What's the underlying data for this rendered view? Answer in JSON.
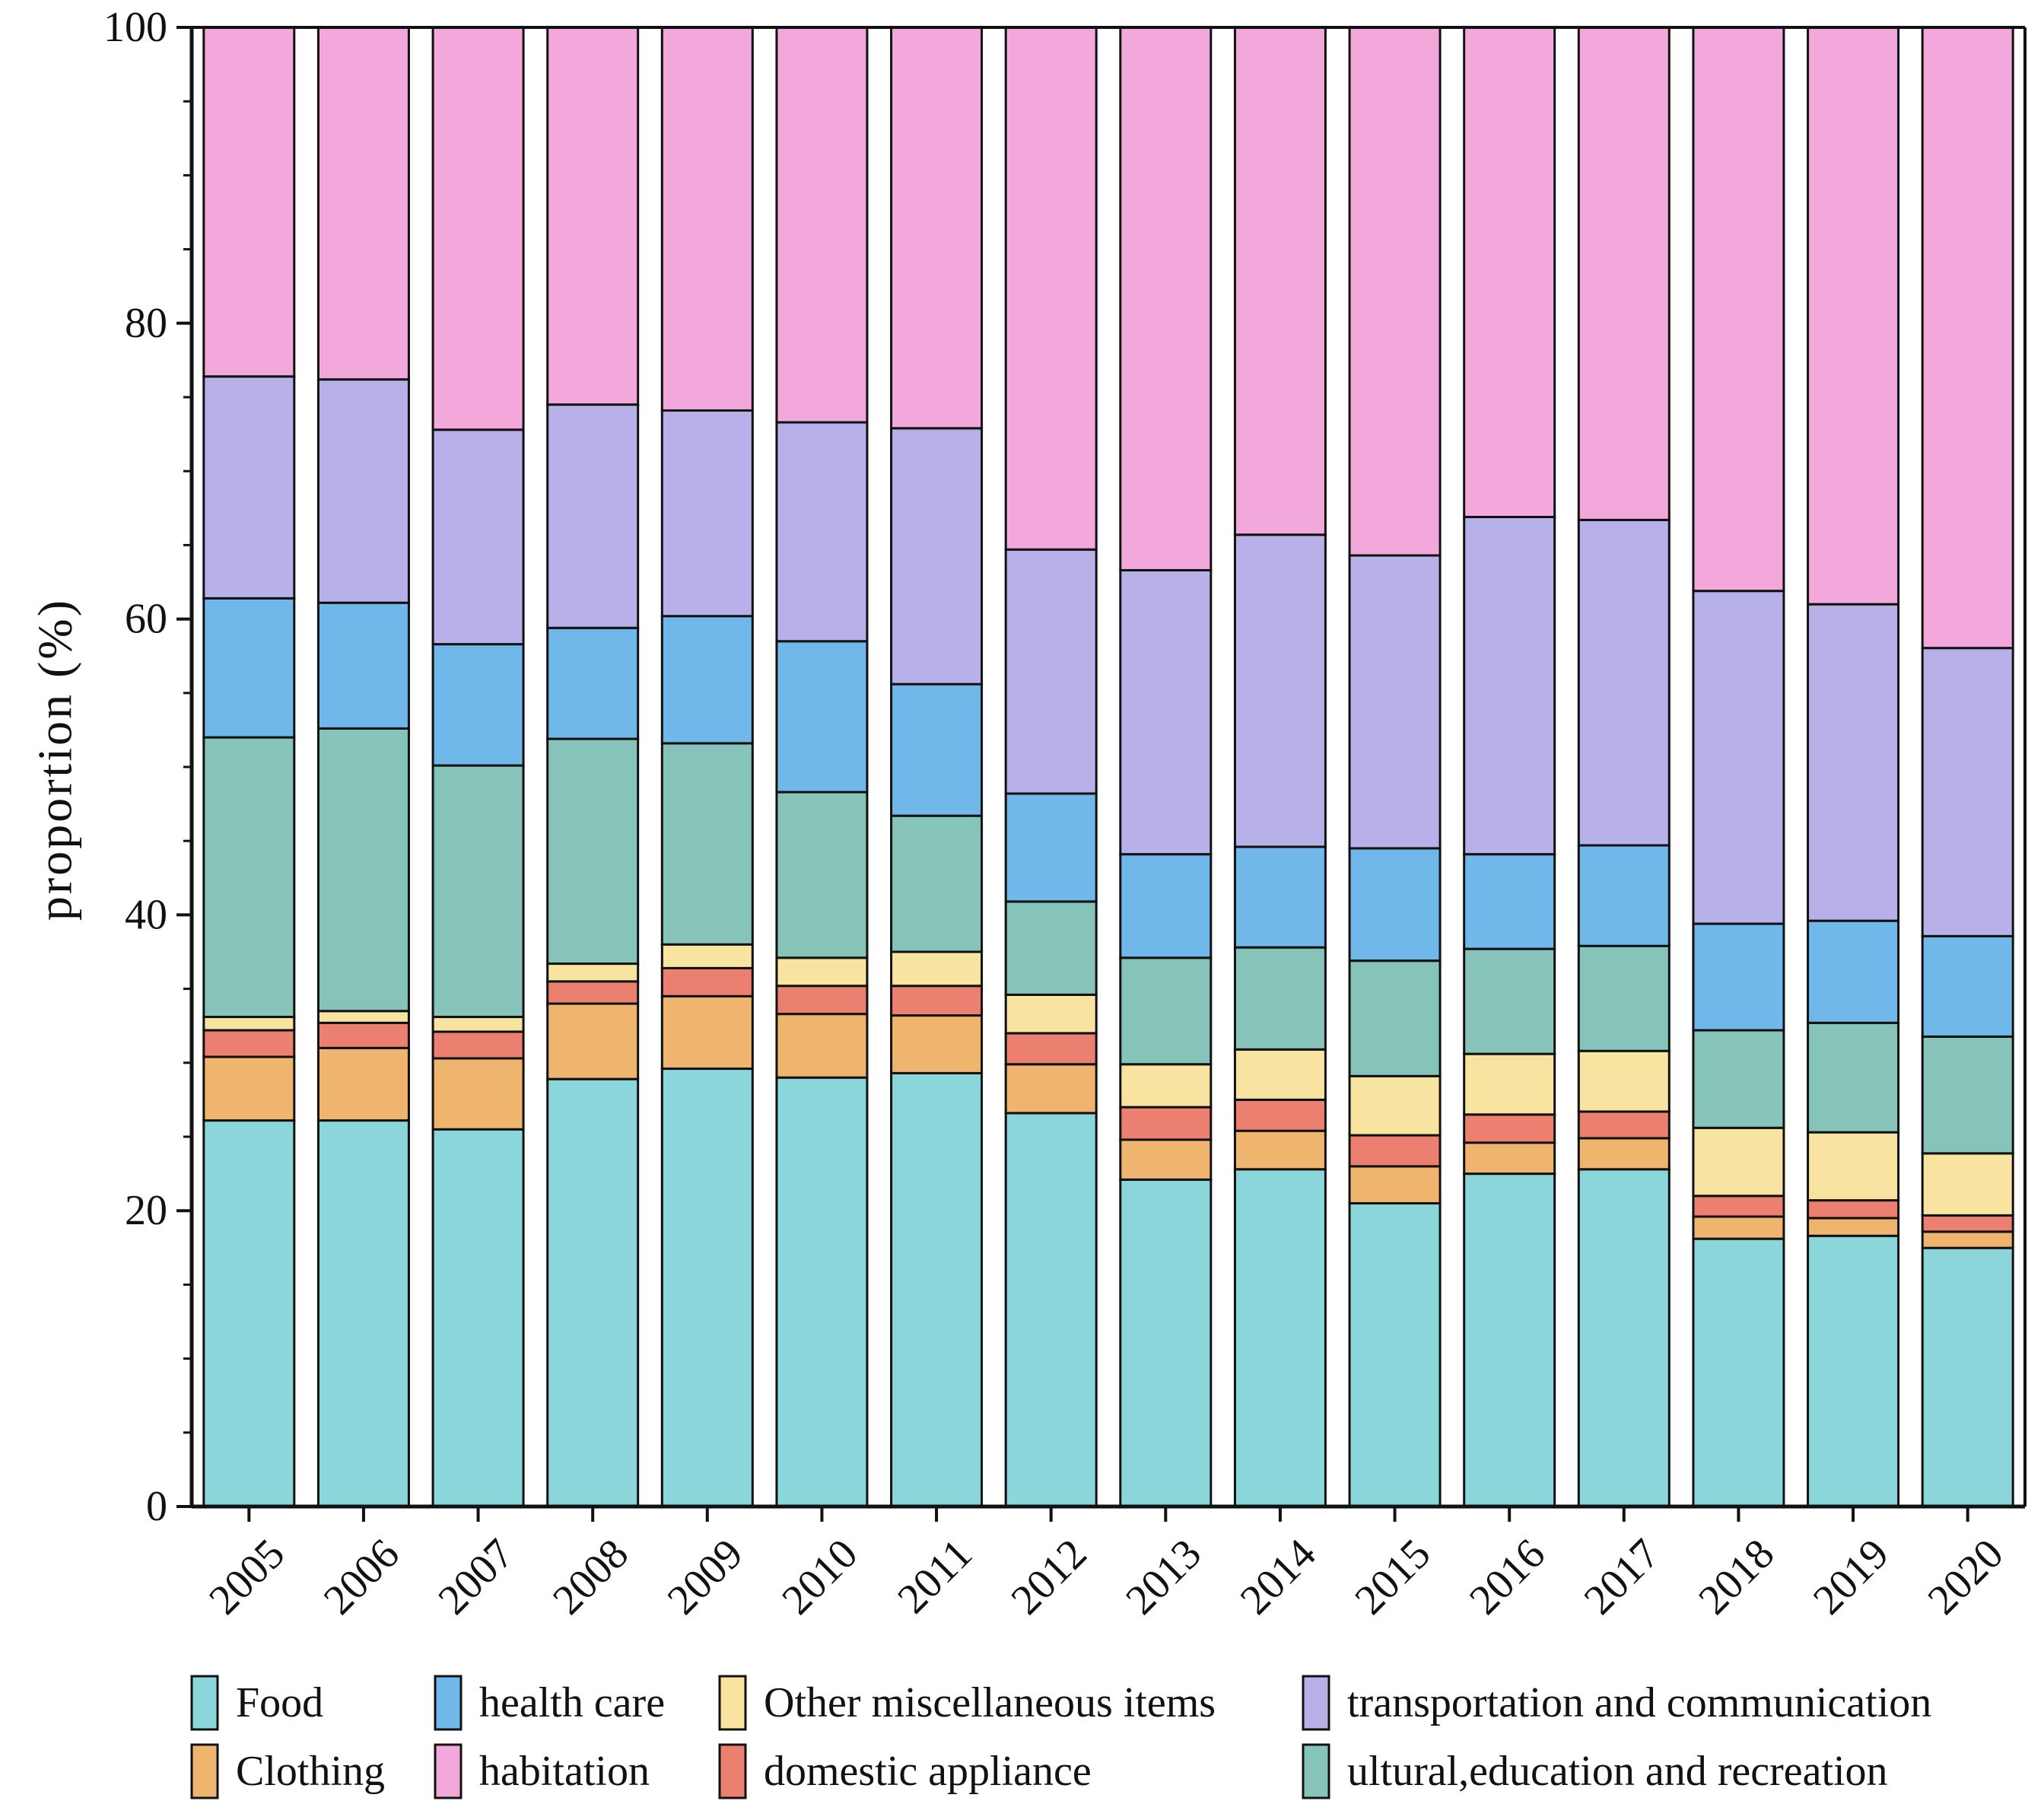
{
  "chart_data": {
    "type": "bar",
    "stacked": true,
    "title": "",
    "xlabel": "",
    "ylabel": "proportion (%)",
    "ylim": [
      0,
      100
    ],
    "yticks": [
      0,
      20,
      40,
      60,
      80,
      100
    ],
    "grid": false,
    "legend_position": "bottom",
    "categories": [
      "2005",
      "2006",
      "2007",
      "2008",
      "2009",
      "2010",
      "2011",
      "2012",
      "2013",
      "2014",
      "2015",
      "2016",
      "2017",
      "2018",
      "2019",
      "2020"
    ],
    "series": [
      {
        "name": "Food",
        "color": "#8AD6DB",
        "values": [
          26.1,
          26.1,
          25.5,
          28.9,
          29.6,
          29.0,
          29.3,
          26.6,
          22.1,
          22.8,
          20.5,
          22.5,
          22.8,
          18.1,
          18.3,
          17.5
        ]
      },
      {
        "name": "Clothing",
        "color": "#EFB56E",
        "values": [
          4.3,
          4.9,
          4.8,
          5.1,
          4.9,
          4.3,
          3.9,
          3.3,
          2.7,
          2.6,
          2.5,
          2.1,
          2.1,
          1.5,
          1.2,
          1.1
        ]
      },
      {
        "name": "domestic appliance",
        "color": "#EC8070",
        "values": [
          1.8,
          1.7,
          1.8,
          1.5,
          1.9,
          1.9,
          2.0,
          2.1,
          2.2,
          2.1,
          2.1,
          1.9,
          1.8,
          1.4,
          1.2,
          1.1
        ]
      },
      {
        "name": "Other miscellaneous items",
        "color": "#F8E4A0",
        "values": [
          0.9,
          0.8,
          1.0,
          1.2,
          1.6,
          1.9,
          2.3,
          2.6,
          2.9,
          3.4,
          4.0,
          4.1,
          4.1,
          4.6,
          4.6,
          4.2
        ]
      },
      {
        "name": "ultural,education and recreation",
        "color": "#86C3B8",
        "values": [
          18.9,
          19.1,
          17.0,
          15.2,
          13.6,
          11.2,
          9.2,
          6.3,
          7.2,
          6.9,
          7.8,
          7.1,
          7.1,
          6.6,
          7.4,
          7.9
        ]
      },
      {
        "name": "health care",
        "color": "#71B8EA",
        "values": [
          9.4,
          8.5,
          8.2,
          7.5,
          8.6,
          10.2,
          8.9,
          7.3,
          7.0,
          6.8,
          7.6,
          6.4,
          6.8,
          7.2,
          6.9,
          6.8
        ]
      },
      {
        "name": "transportation and communication",
        "color": "#B8B0E8",
        "values": [
          15.0,
          15.1,
          14.5,
          15.1,
          13.9,
          14.8,
          17.3,
          16.5,
          19.2,
          21.1,
          19.8,
          22.8,
          22.0,
          22.5,
          21.4,
          19.5
        ]
      },
      {
        "name": "habitation",
        "color": "#F2A8DA",
        "values": [
          23.6,
          23.8,
          27.2,
          25.5,
          25.9,
          26.7,
          27.1,
          35.3,
          36.7,
          34.3,
          35.7,
          33.1,
          33.3,
          38.1,
          39.0,
          42.0
        ]
      }
    ],
    "legend": {
      "rows": [
        [
          "Food",
          "health care",
          "Other miscellaneous items",
          "transportation and communication"
        ],
        [
          "Clothing",
          "habitation",
          "domestic appliance",
          "ultural,education and recreation"
        ]
      ]
    }
  }
}
